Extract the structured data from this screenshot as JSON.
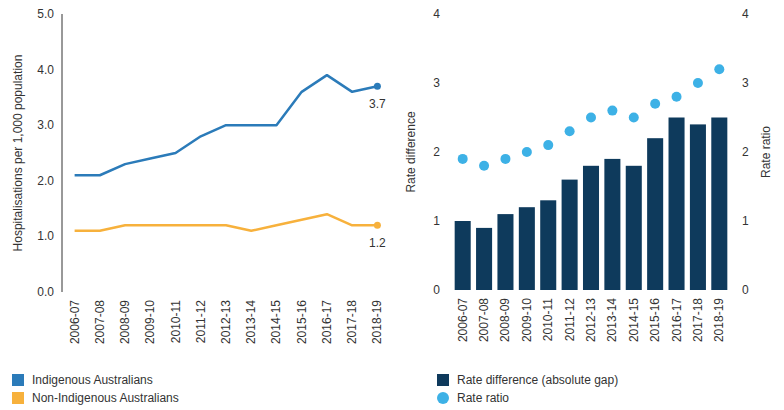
{
  "chart_data": [
    {
      "type": "line",
      "y_label": "Hospitalisations per 1,000 population",
      "categories": [
        "2006-07",
        "2007-08",
        "2008-09",
        "2009-10",
        "2010-11",
        "2011-12",
        "2012-13",
        "2013-14",
        "2014-15",
        "2015-16",
        "2016-17",
        "2017-18",
        "2018-19"
      ],
      "series": [
        {
          "name": "Indigenous Australians",
          "color": "#2b7bb9",
          "values": [
            2.1,
            2.1,
            2.3,
            2.4,
            2.5,
            2.8,
            3.0,
            3.0,
            3.0,
            3.6,
            3.9,
            3.6,
            3.7
          ],
          "value_labels": [
            null,
            null,
            null,
            null,
            null,
            null,
            null,
            null,
            null,
            null,
            null,
            null,
            "3.7"
          ]
        },
        {
          "name": "Non-Indigenous Australians",
          "color": "#f7b13c",
          "values": [
            1.1,
            1.1,
            1.2,
            1.2,
            1.2,
            1.2,
            1.2,
            1.1,
            1.2,
            1.3,
            1.4,
            1.2,
            1.2
          ],
          "value_labels": [
            null,
            null,
            null,
            null,
            null,
            null,
            null,
            null,
            null,
            null,
            null,
            null,
            "1.2"
          ]
        }
      ],
      "ylim": [
        0,
        5
      ],
      "yticks": [
        {
          "value": 0,
          "label": "0.0"
        },
        {
          "value": 1,
          "label": "1.0"
        },
        {
          "value": 2,
          "label": "2.0"
        },
        {
          "value": 3,
          "label": "3.0"
        },
        {
          "value": 4,
          "label": "4.0"
        },
        {
          "value": 5,
          "label": "5.0"
        }
      ],
      "grid": false,
      "legend": "bottom"
    },
    {
      "type": "bar",
      "y_label": "Rate difference",
      "y2_label": "Rate ratio",
      "categories": [
        "2006-07",
        "2007-08",
        "2008-09",
        "2009-10",
        "2010-11",
        "2011-12",
        "2012-13",
        "2013-14",
        "2014-15",
        "2015-16",
        "2016-17",
        "2017-18",
        "2018-19"
      ],
      "series": [
        {
          "name": "Rate difference (absolute gap)",
          "type": "bar",
          "color": "#0e3a5c",
          "values": [
            1.0,
            0.9,
            1.1,
            1.2,
            1.3,
            1.6,
            1.8,
            1.9,
            1.8,
            2.2,
            2.5,
            2.4,
            2.5
          ]
        },
        {
          "name": "Rate ratio",
          "type": "scatter",
          "marker": "circle",
          "axis": "y2",
          "color": "#3db1e6",
          "values": [
            1.9,
            1.8,
            1.9,
            2.0,
            2.1,
            2.3,
            2.5,
            2.6,
            2.5,
            2.7,
            2.8,
            3.0,
            3.2
          ]
        }
      ],
      "ylim": [
        0,
        4
      ],
      "yticks": [
        0,
        1,
        2,
        3,
        4
      ],
      "y2lim": [
        0,
        4
      ],
      "y2ticks": [
        0,
        1,
        2,
        3,
        4
      ],
      "grid": false,
      "legend": "bottom"
    }
  ]
}
